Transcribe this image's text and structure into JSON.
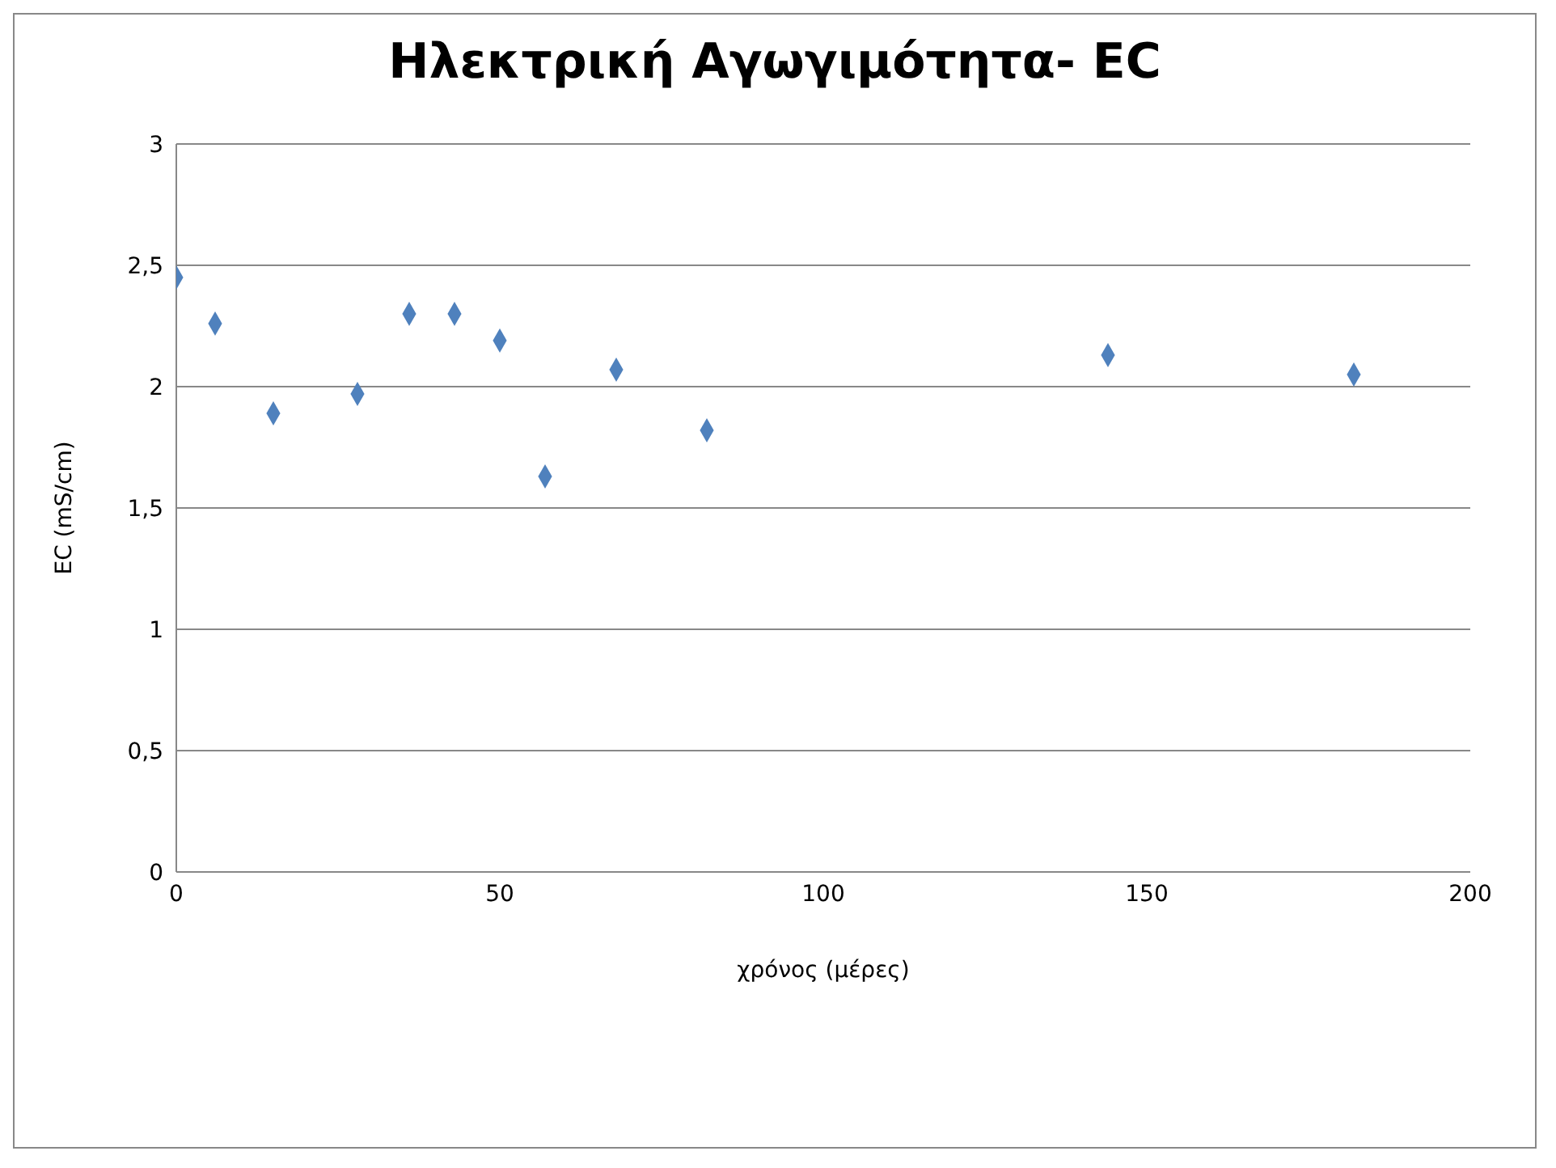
{
  "chart_data": {
    "type": "scatter",
    "title": "Ηλεκτρική Αγωγιμότητα- EC",
    "xlabel": "χρόνος (μέρες)",
    "ylabel": "EC (mS/cm)",
    "x": [
      0,
      6,
      15,
      28,
      36,
      43,
      50,
      57,
      68,
      82,
      144,
      182
    ],
    "series": [
      {
        "color": "#4f81bd",
        "values": [
          2.45,
          2.26,
          1.89,
          1.97,
          2.3,
          2.3,
          2.19,
          1.63,
          2.07,
          1.82,
          2.13,
          2.05
        ]
      }
    ],
    "xlim": [
      0,
      200
    ],
    "xticks": [
      0,
      50,
      100,
      150,
      200
    ],
    "ylim": [
      0,
      3
    ],
    "yticks": [
      0,
      {
        "value": 0.5,
        "label": "0,5"
      },
      1,
      {
        "value": 1.5,
        "label": "1,5"
      },
      2,
      {
        "value": 2.5,
        "label": "2,5"
      },
      3
    ],
    "grid": "y",
    "marker": "diamond"
  }
}
